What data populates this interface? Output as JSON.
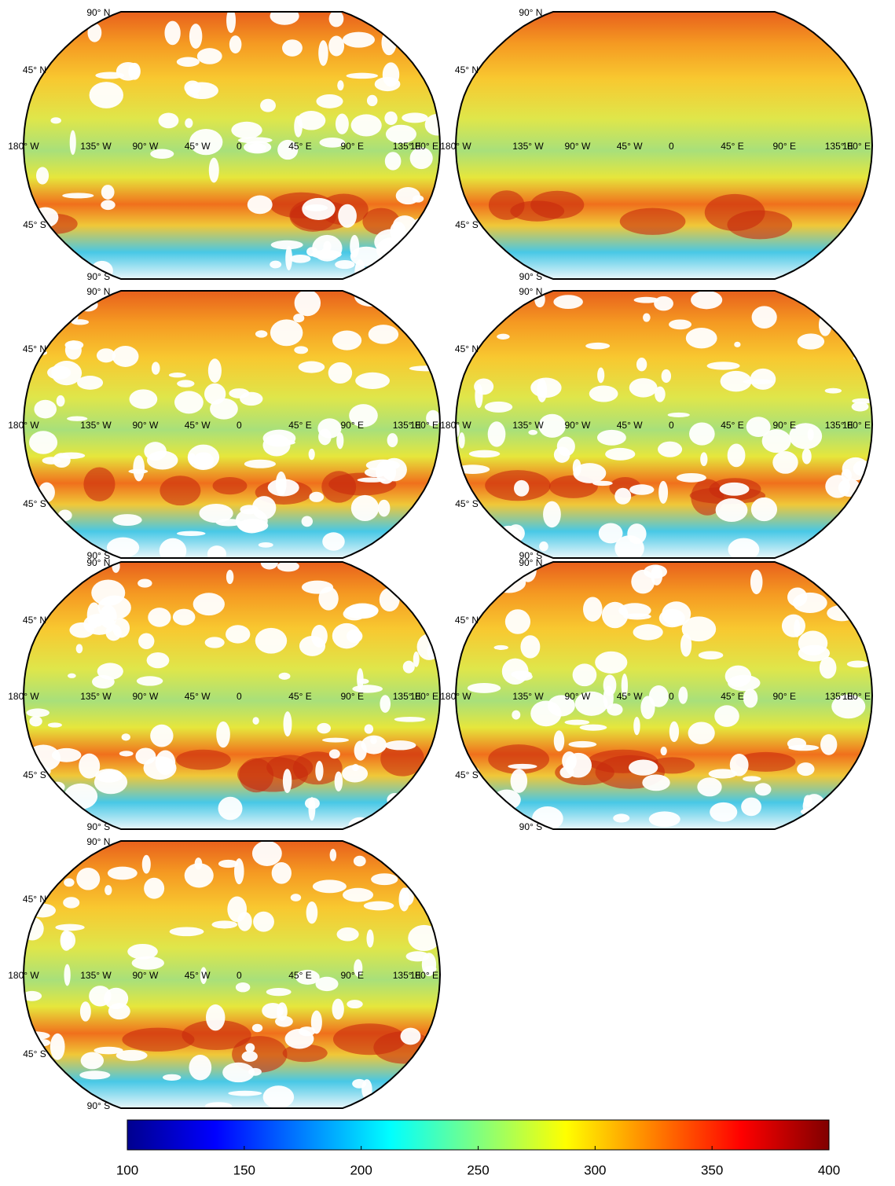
{
  "graticule_labels": {
    "lat": [
      "90° N",
      "45° N",
      "45° S",
      "90° S"
    ],
    "lon": [
      "180° W",
      "135° W",
      "90° W",
      "45° W",
      "0",
      "45° E",
      "90° E",
      "135° E",
      "180° E"
    ]
  },
  "colorbar": {
    "lim": [
      100,
      400
    ],
    "ticks": [
      100,
      150,
      200,
      250,
      300,
      350,
      400
    ],
    "colors": [
      "#00008f",
      "#0000ff",
      "#00ffff",
      "#ffff00",
      "#ff0000",
      "#800000"
    ]
  }
}
